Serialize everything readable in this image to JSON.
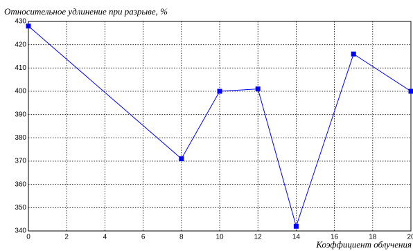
{
  "chart_data": {
    "type": "line",
    "y_label": "Относительное удлинение при разрыве, %",
    "x_label": "Коэффициент облучения",
    "x": [
      0,
      8,
      10,
      12,
      14,
      17,
      20
    ],
    "series": [
      {
        "color": "#0000ff",
        "values": [
          428,
          371,
          400,
          401,
          342,
          416,
          400
        ]
      }
    ],
    "xlim": [
      0,
      20
    ],
    "xticks": [
      0,
      2,
      4,
      6,
      8,
      10,
      12,
      14,
      16,
      18,
      20
    ],
    "ylim": [
      340,
      430
    ],
    "yticks": [
      340,
      350,
      360,
      370,
      380,
      390,
      400,
      410,
      420,
      430
    ],
    "grid": true
  }
}
